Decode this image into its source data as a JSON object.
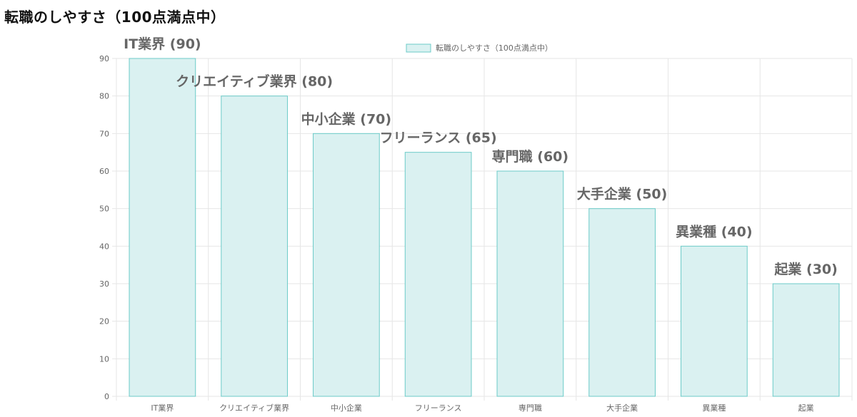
{
  "page": {
    "title": "転職のしやすさ（100点満点中）"
  },
  "chart_data": {
    "type": "bar",
    "categories": [
      "IT業界",
      "クリエイティブ業界",
      "中小企業",
      "フリーランス",
      "専門職",
      "大手企業",
      "異業種",
      "起業"
    ],
    "series": [
      {
        "name": "転職のしやすさ（100点満点中）",
        "values": [
          90,
          80,
          70,
          65,
          60,
          50,
          40,
          30
        ]
      }
    ],
    "data_labels": [
      "IT業界 (90)",
      "クリエイティブ業界 (80)",
      "中小企業 (70)",
      "フリーランス (65)",
      "専門職 (60)",
      "大手企業 (50)",
      "異業種 (40)",
      "起業 (30)"
    ],
    "ylim": [
      0,
      90
    ],
    "yticks": [
      0,
      10,
      20,
      30,
      40,
      50,
      60,
      70,
      80,
      90
    ],
    "grid": true,
    "legend_position": "top-center",
    "colors": {
      "bar_fill": "#daf1f1",
      "bar_stroke": "#6ccbc8",
      "grid": "#e6e6e6",
      "axis_text": "#666666"
    }
  }
}
